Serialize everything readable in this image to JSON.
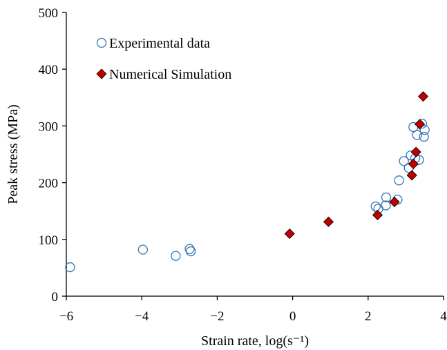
{
  "chart_data": {
    "type": "scatter",
    "xlabel": "Strain rate, log(s⁻¹)",
    "ylabel": "Peak stress (MPa)",
    "xlim": [
      -6,
      4
    ],
    "ylim": [
      0,
      500
    ],
    "x_ticks": [
      -6,
      -4,
      -2,
      0,
      2,
      4
    ],
    "x_tick_labels": [
      "−6",
      "−4",
      "−2",
      "0",
      "2",
      "4"
    ],
    "y_ticks": [
      0,
      100,
      200,
      300,
      400,
      500
    ],
    "y_tick_labels": [
      "0",
      "100",
      "200",
      "300",
      "400",
      "500"
    ],
    "grid": false,
    "legend_position": "top-left",
    "series": [
      {
        "name": "Experimental data",
        "marker": "circle-open",
        "color": "#2e75b6",
        "points": [
          {
            "x": -5.9,
            "y": 51
          },
          {
            "x": -3.97,
            "y": 82
          },
          {
            "x": -3.1,
            "y": 71
          },
          {
            "x": -2.73,
            "y": 83
          },
          {
            "x": -2.7,
            "y": 79
          },
          {
            "x": 2.2,
            "y": 158
          },
          {
            "x": 2.27,
            "y": 154
          },
          {
            "x": 2.47,
            "y": 160
          },
          {
            "x": 2.48,
            "y": 174
          },
          {
            "x": 2.78,
            "y": 170
          },
          {
            "x": 2.82,
            "y": 204
          },
          {
            "x": 2.95,
            "y": 238
          },
          {
            "x": 3.08,
            "y": 226
          },
          {
            "x": 3.13,
            "y": 248
          },
          {
            "x": 3.2,
            "y": 298
          },
          {
            "x": 3.25,
            "y": 243
          },
          {
            "x": 3.3,
            "y": 284
          },
          {
            "x": 3.35,
            "y": 240
          },
          {
            "x": 3.43,
            "y": 304
          },
          {
            "x": 3.48,
            "y": 281
          },
          {
            "x": 3.5,
            "y": 293
          }
        ]
      },
      {
        "name": "Numerical Simulation",
        "marker": "diamond-filled",
        "color": "#c00000",
        "points": [
          {
            "x": -0.08,
            "y": 110
          },
          {
            "x": 0.95,
            "y": 131
          },
          {
            "x": 2.25,
            "y": 143
          },
          {
            "x": 2.7,
            "y": 166
          },
          {
            "x": 3.16,
            "y": 213
          },
          {
            "x": 3.2,
            "y": 233
          },
          {
            "x": 3.27,
            "y": 254
          },
          {
            "x": 3.37,
            "y": 303
          },
          {
            "x": 3.46,
            "y": 352
          }
        ]
      }
    ]
  }
}
